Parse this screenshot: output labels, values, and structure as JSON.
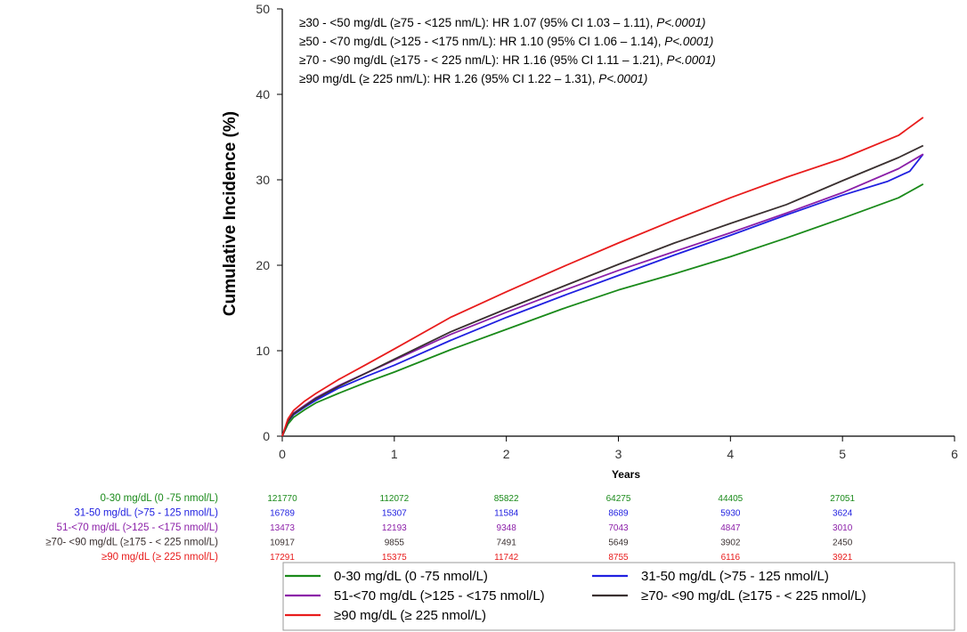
{
  "chart_data": {
    "type": "line",
    "title": "",
    "xlabel": "Years",
    "ylabel": "Cumulative Incidence (%)",
    "xlim": [
      0,
      6
    ],
    "ylim": [
      0,
      50
    ],
    "xticks": [
      "0",
      "1",
      "2",
      "3",
      "4",
      "5",
      "6"
    ],
    "yticks": [
      "0",
      "10",
      "20",
      "30",
      "40",
      "50"
    ],
    "annotations": [
      {
        "text": "≥30 - <50 mg/dL (≥75 - <125 nm/L):  HR 1.07 (95% CI 1.03 – 1.11), ",
        "p": "P<.0001)"
      },
      {
        "text": "≥50 - <70 mg/dL (>125 - <175 nm/L):  HR 1.10 (95% CI 1.06 – 1.14), ",
        "p": "P<.0001)"
      },
      {
        "text": "≥70 - <90 mg/dL (≥175 - < 225 nm/L):  HR 1.16 (95% CI 1.11 – 1.21), ",
        "p": "P<.0001)"
      },
      {
        "text": "≥90 mg/dL (≥ 225 nm/L):  HR 1.26 (95% CI 1.22 – 1.31), ",
        "p": "P<.0001)"
      }
    ],
    "series": [
      {
        "name": "0-30 mg/dL (0 -75 nmol/L)",
        "color": "#1a8a1a",
        "x": [
          0,
          0.05,
          0.1,
          0.2,
          0.3,
          0.5,
          0.75,
          1,
          1.5,
          2,
          2.5,
          3,
          3.5,
          4,
          4.5,
          5,
          5.5,
          5.72
        ],
        "y": [
          0,
          1.4,
          2.2,
          3.1,
          3.9,
          5.0,
          6.3,
          7.5,
          10.1,
          12.5,
          14.9,
          17.1,
          19.0,
          21.0,
          23.2,
          25.5,
          27.9,
          29.5
        ]
      },
      {
        "name": "31-50 mg/dL (>75 - 125 nmol/L)",
        "color": "#2020e0",
        "x": [
          0,
          0.05,
          0.1,
          0.2,
          0.3,
          0.5,
          0.75,
          1,
          1.5,
          2,
          2.5,
          3,
          3.5,
          4,
          4.5,
          5,
          5.4,
          5.6,
          5.72
        ],
        "y": [
          0,
          1.7,
          2.5,
          3.4,
          4.2,
          5.6,
          7.0,
          8.3,
          11.2,
          13.9,
          16.4,
          18.8,
          21.2,
          23.5,
          25.9,
          28.2,
          29.8,
          31.0,
          33.0
        ]
      },
      {
        "name": "51-<70 mg/dL (>125 - <175 nmol/L)",
        "color": "#8b1fa8",
        "x": [
          0,
          0.05,
          0.1,
          0.2,
          0.3,
          0.5,
          0.75,
          1,
          1.5,
          2,
          2.5,
          3,
          3.5,
          4,
          4.5,
          5,
          5.5,
          5.72
        ],
        "y": [
          0,
          1.8,
          2.7,
          3.6,
          4.5,
          5.9,
          7.4,
          8.9,
          11.9,
          14.5,
          17.0,
          19.4,
          21.6,
          23.8,
          26.1,
          28.5,
          31.3,
          33.0
        ]
      },
      {
        "name": "≥70- <90 mg/dL (≥175 - < 225 nmol/L)",
        "color": "#3a3030",
        "x": [
          0,
          0.05,
          0.1,
          0.2,
          0.3,
          0.5,
          0.75,
          1,
          1.5,
          2,
          2.5,
          3,
          3.5,
          4,
          4.5,
          5,
          5.5,
          5.72
        ],
        "y": [
          0,
          1.7,
          2.6,
          3.5,
          4.4,
          5.8,
          7.4,
          9.0,
          12.2,
          14.9,
          17.5,
          20.1,
          22.6,
          24.9,
          27.1,
          29.9,
          32.6,
          34.0
        ]
      },
      {
        "name": "≥90 mg/dL (≥ 225 nmol/L)",
        "color": "#e81c1c",
        "x": [
          0,
          0.05,
          0.1,
          0.2,
          0.3,
          0.5,
          0.75,
          1,
          1.5,
          2,
          2.5,
          3,
          3.5,
          4,
          4.5,
          5,
          5.5,
          5.72
        ],
        "y": [
          0,
          2.0,
          3.0,
          4.1,
          5.0,
          6.6,
          8.4,
          10.2,
          13.9,
          16.9,
          19.8,
          22.6,
          25.3,
          27.9,
          30.3,
          32.5,
          35.2,
          37.3
        ]
      }
    ],
    "risk_table": [
      {
        "label": "0-30 mg/dL (0 -75 nmol/L)",
        "color": "#1a8a1a",
        "values": [
          "121770",
          "112072",
          "85822",
          "64275",
          "44405",
          "27051"
        ]
      },
      {
        "label": "31-50 mg/dL (>75 - 125 nmol/L)",
        "color": "#2020e0",
        "values": [
          "16789",
          "15307",
          "11584",
          "8689",
          "5930",
          "3624"
        ]
      },
      {
        "label": "51-<70 mg/dL (>125 - <175 nmol/L)",
        "color": "#8b1fa8",
        "values": [
          "13473",
          "12193",
          "9348",
          "7043",
          "4847",
          "3010"
        ]
      },
      {
        "label": "≥70- <90 mg/dL (≥175 - < 225 nmol/L)",
        "color": "#3a3030",
        "values": [
          "10917",
          "9855",
          "7491",
          "5649",
          "3902",
          "2450"
        ]
      },
      {
        "label": "≥90 mg/dL (≥ 225 nmol/L)",
        "color": "#e81c1c",
        "values": [
          "17291",
          "15375",
          "11742",
          "8755",
          "6116",
          "3921"
        ]
      }
    ],
    "risk_times": [
      0,
      1,
      2,
      3,
      4,
      5
    ],
    "legend": {
      "placement": "bottom",
      "entries": [
        {
          "label": "0-30 mg/dL (0 -75 nmol/L)",
          "color": "#1a8a1a"
        },
        {
          "label": "31-50 mg/dL (>75 - 125 nmol/L)",
          "color": "#2020e0"
        },
        {
          "label": "51-<70 mg/dL (>125 - <175 nmol/L)",
          "color": "#8b1fa8"
        },
        {
          "label": "≥70- <90 mg/dL (≥175 - < 225 nmol/L)",
          "color": "#3a3030"
        },
        {
          "label": "≥90 mg/dL (≥ 225 nmol/L)",
          "color": "#e81c1c"
        }
      ]
    }
  }
}
